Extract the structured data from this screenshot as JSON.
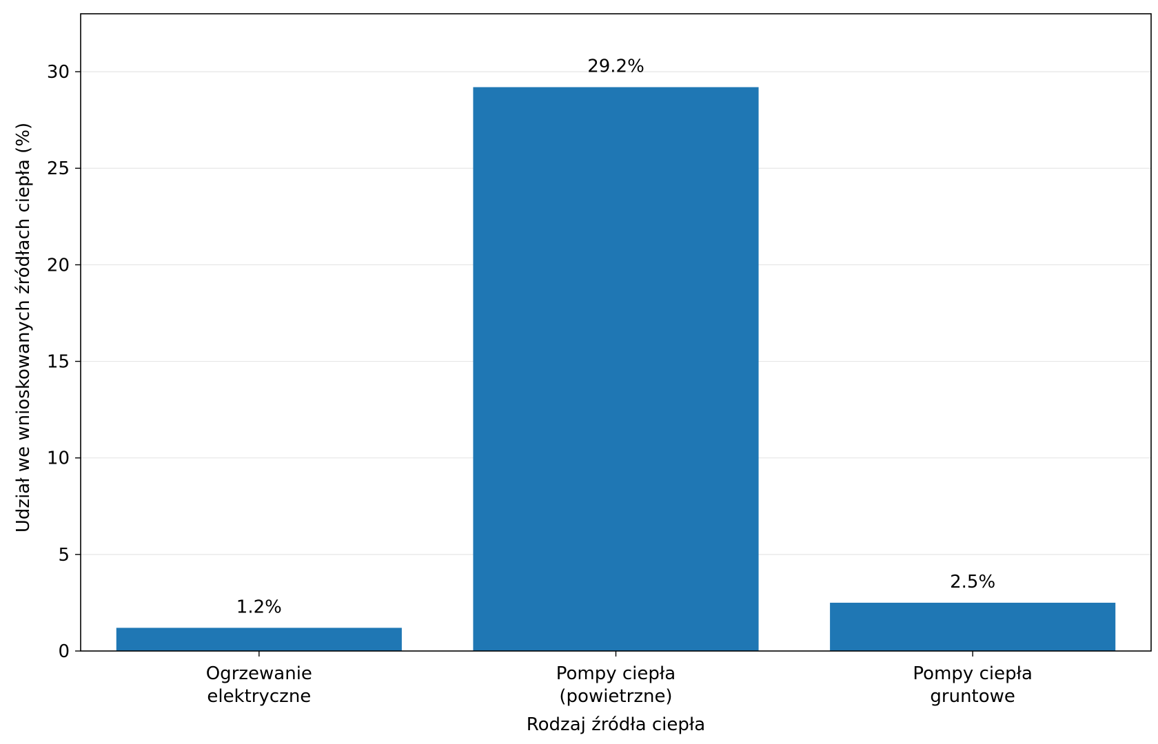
{
  "chart_data": {
    "type": "bar",
    "categories": [
      [
        "Ogrzewanie",
        "elektryczne"
      ],
      [
        "Pompy ciepła",
        "(powietrzne)"
      ],
      [
        "Pompy ciepła",
        "gruntowe"
      ]
    ],
    "values": [
      1.2,
      29.2,
      2.5
    ],
    "data_labels": [
      "1.2%",
      "29.2%",
      "2.5%"
    ],
    "xlabel": "Rodzaj źródła ciepła",
    "ylabel": "Udział we wnioskowanych źródłach ciepła (%)",
    "ylim": [
      0,
      33
    ],
    "yticks": [
      0,
      5,
      10,
      15,
      20,
      25,
      30
    ],
    "grid": "y",
    "bar_color": "#1f77b4",
    "grid_color": "#e6e6e6"
  }
}
